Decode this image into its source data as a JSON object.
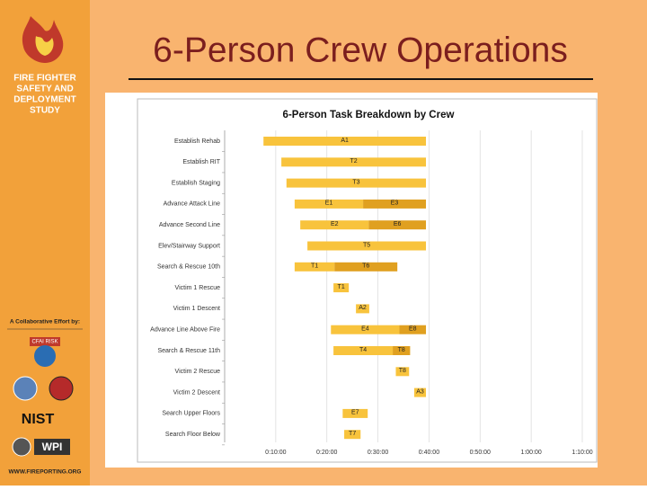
{
  "sidebar": {
    "logo_text": [
      "FIRE FIGHTER",
      "SAFETY AND",
      "DEPLOYMENT",
      "STUDY"
    ],
    "collab": "A Collaborative Effort by:",
    "partners": [
      "CFAI RISK",
      "NIST",
      "WPI"
    ],
    "website": "WWW.FIREPORTING.ORG"
  },
  "slide_title": "6-Person Crew Operations",
  "chart_data": {
    "type": "gantt",
    "title": "6-Person Task Breakdown by Crew",
    "xlim": [
      0,
      70
    ],
    "xticks": [
      {
        "value": 10,
        "label": "0:10:00"
      },
      {
        "value": 20,
        "label": "0:20:00"
      },
      {
        "value": 30,
        "label": "0:30:00"
      },
      {
        "value": 40,
        "label": "0:40:00"
      },
      {
        "value": 50,
        "label": "0:50:00"
      },
      {
        "value": 60,
        "label": "1:00:00"
      },
      {
        "value": 70,
        "label": "1:10:00"
      }
    ],
    "grid": true,
    "rows": [
      {
        "name": "Establish Rehab",
        "segments": [
          {
            "label": "A1",
            "start": 7.6,
            "end": 39.4,
            "color": "#f8c33c"
          }
        ]
      },
      {
        "name": "Establish RIT",
        "segments": [
          {
            "label": "T2",
            "start": 11.1,
            "end": 39.4,
            "color": "#f8c33c"
          }
        ]
      },
      {
        "name": "Establish Staging",
        "segments": [
          {
            "label": "T3",
            "start": 12.1,
            "end": 39.4,
            "color": "#f8c33c"
          }
        ]
      },
      {
        "name": "Advance Attack Line",
        "segments": [
          {
            "label": "E1",
            "start": 13.7,
            "end": 27.1,
            "color": "#f8c33c"
          },
          {
            "label": "E3",
            "start": 27.1,
            "end": 39.4,
            "color": "#e0a020"
          }
        ]
      },
      {
        "name": "Advance Second Line",
        "segments": [
          {
            "label": "E2",
            "start": 14.8,
            "end": 28.2,
            "color": "#f8c33c"
          },
          {
            "label": "E6",
            "start": 28.2,
            "end": 39.4,
            "color": "#e0a020"
          }
        ]
      },
      {
        "name": "Elev/Stairway Support",
        "segments": [
          {
            "label": "T5",
            "start": 16.2,
            "end": 39.4,
            "color": "#f8c33c"
          }
        ]
      },
      {
        "name": "Search & Rescue 10th",
        "segments": [
          {
            "label": "T1",
            "start": 13.7,
            "end": 21.5,
            "color": "#f8c33c"
          },
          {
            "label": "T6",
            "start": 21.5,
            "end": 33.8,
            "color": "#e0a020"
          }
        ]
      },
      {
        "name": "Victim 1 Rescue",
        "segments": [
          {
            "label": "T1",
            "start": 21.3,
            "end": 24.3,
            "color": "#f8c33c"
          }
        ]
      },
      {
        "name": "Victim 1 Descent",
        "segments": [
          {
            "label": "A2",
            "start": 25.7,
            "end": 28.3,
            "color": "#f8c33c"
          }
        ]
      },
      {
        "name": "Advance Line Above Fire",
        "segments": [
          {
            "label": "E4",
            "start": 20.8,
            "end": 34.2,
            "color": "#f8c33c"
          },
          {
            "label": "E8",
            "start": 34.2,
            "end": 39.4,
            "color": "#e0a020"
          }
        ]
      },
      {
        "name": "Search & Rescue 11th",
        "segments": [
          {
            "label": "T4",
            "start": 21.3,
            "end": 32.9,
            "color": "#f8c33c"
          },
          {
            "label": "T8",
            "start": 32.9,
            "end": 36.3,
            "color": "#e0a020"
          }
        ]
      },
      {
        "name": "Victim 2 Rescue",
        "segments": [
          {
            "label": "T8",
            "start": 33.5,
            "end": 36.1,
            "color": "#f8c33c"
          }
        ]
      },
      {
        "name": "Victim 2 Descent",
        "segments": [
          {
            "label": "A3",
            "start": 37.1,
            "end": 39.4,
            "color": "#f8c33c"
          }
        ]
      },
      {
        "name": "Search Upper Floors",
        "segments": [
          {
            "label": "E7",
            "start": 23.1,
            "end": 28.0,
            "color": "#f8c33c"
          }
        ]
      },
      {
        "name": "Search Floor Below",
        "segments": [
          {
            "label": "T7",
            "start": 23.4,
            "end": 26.6,
            "color": "#f8c33c"
          }
        ]
      }
    ]
  }
}
